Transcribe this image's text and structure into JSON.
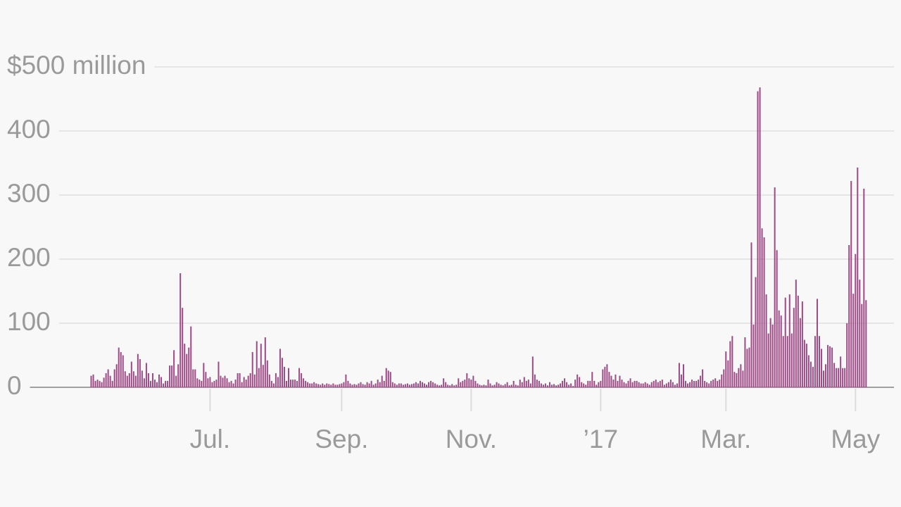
{
  "chart_data": {
    "type": "bar",
    "color": "#9e4a86",
    "grid": true,
    "ylim": [
      0,
      500
    ],
    "yticks": [
      0,
      100,
      200,
      300,
      400,
      {
        "value": 500,
        "label": "$500 million"
      }
    ],
    "categories": [
      null,
      null,
      null,
      null,
      null,
      null,
      null,
      null,
      null,
      null,
      null,
      null,
      null,
      null,
      null,
      null,
      null,
      null,
      null,
      null,
      null,
      null,
      null,
      null,
      null,
      null,
      null,
      null,
      null,
      null,
      null,
      null,
      null,
      null,
      null,
      null,
      null,
      null,
      null,
      null,
      null,
      null,
      null,
      null,
      null,
      null,
      null,
      null,
      null,
      null,
      null,
      null,
      null,
      null,
      null,
      null,
      "Jul.",
      null,
      null,
      null,
      null,
      null,
      null,
      null,
      null,
      null,
      null,
      null,
      null,
      null,
      null,
      null,
      null,
      null,
      null,
      null,
      null,
      null,
      null,
      null,
      null,
      null,
      null,
      null,
      null,
      null,
      null,
      null,
      null,
      null,
      null,
      null,
      null,
      null,
      null,
      null,
      null,
      null,
      null,
      null,
      null,
      null,
      null,
      null,
      null,
      null,
      null,
      null,
      null,
      null,
      null,
      null,
      null,
      null,
      null,
      null,
      null,
      null,
      "Sep.",
      null,
      null,
      null,
      null,
      null,
      null,
      null,
      null,
      null,
      null,
      null,
      null,
      null,
      null,
      null,
      null,
      null,
      null,
      null,
      null,
      null,
      null,
      null,
      null,
      null,
      null,
      null,
      null,
      null,
      null,
      null,
      null,
      null,
      null,
      null,
      null,
      null,
      null,
      null,
      null,
      null,
      null,
      null,
      null,
      null,
      null,
      null,
      null,
      null,
      null,
      null,
      null,
      null,
      null,
      null,
      null,
      null,
      null,
      null,
      null,
      "Nov.",
      null,
      null,
      null,
      null,
      null,
      null,
      null,
      null,
      null,
      null,
      null,
      null,
      null,
      null,
      null,
      null,
      null,
      null,
      null,
      null,
      null,
      null,
      null,
      null,
      null,
      null,
      null,
      null,
      null,
      null,
      null,
      null,
      null,
      null,
      null,
      null,
      null,
      null,
      null,
      null,
      null,
      null,
      null,
      null,
      null,
      null,
      null,
      null,
      null,
      null,
      null,
      null,
      null,
      null,
      null,
      null,
      null,
      null,
      null,
      null,
      "’17",
      null,
      null,
      null,
      null,
      null,
      null,
      null,
      null,
      null,
      null,
      null,
      null,
      null,
      null,
      null,
      null,
      null,
      null,
      null,
      null,
      null,
      null,
      null,
      null,
      null,
      null,
      null,
      null,
      null,
      null,
      null,
      null,
      null,
      null,
      null,
      null,
      null,
      null,
      null,
      null,
      null,
      null,
      null,
      null,
      null,
      null,
      null,
      null,
      null,
      null,
      null,
      null,
      null,
      null,
      null,
      null,
      null,
      null,
      "Mar.",
      null,
      null,
      null,
      null,
      null,
      null,
      null,
      null,
      null,
      null,
      null,
      null,
      null,
      null,
      null,
      null,
      null,
      null,
      null,
      null,
      null,
      null,
      null,
      null,
      null,
      null,
      null,
      null,
      null,
      null,
      null,
      null,
      null,
      null,
      null,
      null,
      null,
      null,
      null,
      null,
      null,
      null,
      null,
      null,
      null,
      null,
      null,
      null,
      null,
      null,
      null,
      null,
      null,
      null,
      null,
      null,
      null,
      null,
      null,
      null,
      "May",
      null,
      null,
      null,
      null,
      null
    ],
    "values": [
      18,
      20,
      10,
      12,
      10,
      8,
      15,
      22,
      28,
      18,
      10,
      28,
      36,
      62,
      55,
      50,
      25,
      18,
      22,
      40,
      25,
      18,
      52,
      44,
      26,
      14,
      38,
      22,
      10,
      22,
      12,
      8,
      20,
      16,
      6,
      10,
      10,
      34,
      34,
      58,
      18,
      36,
      178,
      124,
      68,
      52,
      62,
      95,
      28,
      28,
      14,
      12,
      10,
      38,
      24,
      14,
      16,
      8,
      10,
      12,
      40,
      18,
      15,
      18,
      14,
      8,
      10,
      6,
      12,
      22,
      22,
      8,
      16,
      12,
      18,
      22,
      55,
      20,
      72,
      30,
      68,
      35,
      78,
      42,
      20,
      10,
      6,
      22,
      16,
      60,
      46,
      32,
      10,
      30,
      12,
      12,
      12,
      10,
      30,
      22,
      14,
      10,
      8,
      6,
      6,
      8,
      6,
      5,
      4,
      6,
      4,
      6,
      5,
      4,
      6,
      4,
      4,
      5,
      6,
      8,
      20,
      10,
      6,
      4,
      5,
      4,
      6,
      8,
      5,
      4,
      8,
      6,
      10,
      4,
      6,
      12,
      8,
      18,
      10,
      30,
      26,
      24,
      8,
      6,
      4,
      6,
      6,
      4,
      5,
      6,
      4,
      5,
      6,
      8,
      6,
      10,
      8,
      6,
      4,
      8,
      10,
      8,
      6,
      4,
      3,
      4,
      14,
      8,
      4,
      3,
      5,
      3,
      4,
      14,
      8,
      10,
      12,
      22,
      14,
      12,
      18,
      10,
      6,
      4,
      3,
      4,
      3,
      12,
      6,
      3,
      4,
      8,
      6,
      4,
      3,
      5,
      8,
      3,
      4,
      10,
      4,
      3,
      12,
      8,
      16,
      10,
      12,
      6,
      48,
      20,
      12,
      10,
      6,
      4,
      6,
      3,
      8,
      4,
      5,
      3,
      4,
      6,
      10,
      14,
      8,
      4,
      6,
      2,
      12,
      20,
      16,
      8,
      6,
      4,
      10,
      10,
      24,
      10,
      4,
      8,
      10,
      28,
      32,
      36,
      24,
      18,
      12,
      20,
      10,
      18,
      12,
      8,
      6,
      10,
      14,
      8,
      10,
      10,
      8,
      6,
      6,
      8,
      6,
      4,
      8,
      10,
      12,
      8,
      10,
      12,
      4,
      6,
      8,
      12,
      8,
      4,
      6,
      38,
      20,
      36,
      10,
      6,
      8,
      12,
      10,
      10,
      12,
      18,
      28,
      10,
      8,
      6,
      10,
      12,
      14,
      10,
      12,
      20,
      28,
      56,
      42,
      72,
      80,
      24,
      22,
      30,
      36,
      26,
      78,
      60,
      62,
      226,
      98,
      172,
      462,
      468,
      248,
      234,
      145,
      84,
      108,
      98,
      312,
      214,
      120,
      112,
      80,
      140,
      80,
      145,
      84,
      124,
      168,
      143,
      108,
      134,
      74,
      68,
      50,
      40,
      32,
      80,
      138,
      80,
      60,
      26,
      36,
      66,
      64,
      62,
      38,
      30,
      30,
      48,
      30,
      30,
      100,
      222,
      322,
      146,
      208,
      343,
      168,
      130,
      310,
      136
    ]
  }
}
